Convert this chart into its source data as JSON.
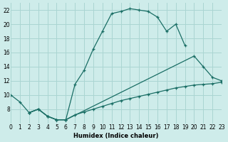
{
  "xlabel": "Humidex (Indice chaleur)",
  "bg_color": "#ceecea",
  "grid_color": "#aad5d2",
  "line_color": "#1a6e65",
  "xlim": [
    0,
    23
  ],
  "ylim": [
    6,
    23
  ],
  "xticks": [
    0,
    1,
    2,
    3,
    4,
    5,
    6,
    7,
    8,
    9,
    10,
    11,
    12,
    13,
    14,
    15,
    16,
    17,
    18,
    19,
    20,
    21,
    22,
    23
  ],
  "yticks": [
    8,
    10,
    12,
    14,
    16,
    18,
    20,
    22
  ],
  "curve1_x": [
    0,
    1,
    2,
    3,
    4,
    5,
    6,
    7,
    8,
    9,
    10,
    11,
    12,
    13,
    14,
    15,
    16,
    17,
    18,
    19
  ],
  "curve1_y": [
    10,
    9,
    7.5,
    8,
    7,
    6.5,
    6.5,
    11.5,
    13.5,
    16.5,
    19,
    21.5,
    21.8,
    22.2,
    22,
    21.8,
    21,
    19,
    20,
    17
  ],
  "curve2_x": [
    2,
    3,
    4,
    5,
    6,
    20,
    21,
    22,
    23
  ],
  "curve2_y": [
    7.5,
    8,
    7,
    6.5,
    6.5,
    15.5,
    14,
    12.5,
    12
  ],
  "curve3_x": [
    2,
    3,
    4,
    5,
    6,
    7,
    8,
    9,
    10,
    11,
    12,
    13,
    14,
    15,
    16,
    17,
    18,
    19,
    20,
    21,
    22,
    23
  ],
  "curve3_y": [
    7.5,
    8,
    7,
    6.5,
    6.5,
    7.2,
    7.6,
    8.0,
    8.4,
    8.8,
    9.2,
    9.5,
    9.8,
    10.1,
    10.4,
    10.7,
    11.0,
    11.2,
    11.4,
    11.5,
    11.6,
    11.8
  ]
}
